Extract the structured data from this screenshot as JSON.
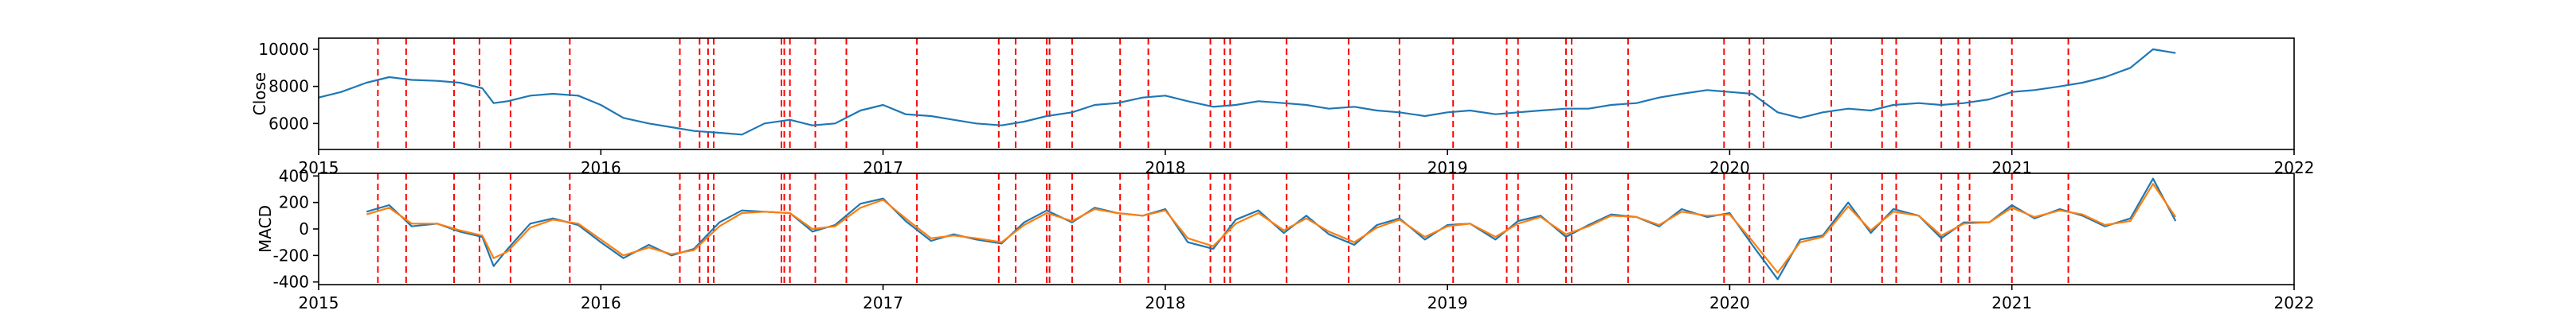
{
  "colors": {
    "close_line": "#1f77b4",
    "macd_line": "#1f77b4",
    "signal_line": "#ff7f0e",
    "event_lines": "#ff0000",
    "axes": "#000000",
    "background": "#ffffff"
  },
  "chart_data": [
    {
      "type": "line",
      "ylabel": "Close",
      "xlim": [
        2015.0,
        2022.0
      ],
      "ylim": [
        4600,
        10600
      ],
      "yticks": [
        6000,
        8000,
        10000
      ],
      "xticks": [
        2015,
        2016,
        2017,
        2018,
        2019,
        2020,
        2021,
        2022
      ],
      "grid": false,
      "series": [
        {
          "x": [
            2015.0,
            2015.08,
            2015.17,
            2015.25,
            2015.33,
            2015.42,
            2015.5,
            2015.58,
            2015.62,
            2015.67,
            2015.75,
            2015.83,
            2015.92,
            2016.0,
            2016.08,
            2016.17,
            2016.25,
            2016.33,
            2016.42,
            2016.5,
            2016.58,
            2016.67,
            2016.75,
            2016.83,
            2016.92,
            2017.0,
            2017.08,
            2017.17,
            2017.25,
            2017.33,
            2017.42,
            2017.5,
            2017.58,
            2017.67,
            2017.75,
            2017.83,
            2017.92,
            2018.0,
            2018.08,
            2018.17,
            2018.25,
            2018.33,
            2018.42,
            2018.5,
            2018.58,
            2018.67,
            2018.75,
            2018.83,
            2018.92,
            2019.0,
            2019.08,
            2019.17,
            2019.25,
            2019.33,
            2019.42,
            2019.5,
            2019.58,
            2019.67,
            2019.75,
            2019.83,
            2019.92,
            2020.0,
            2020.08,
            2020.17,
            2020.25,
            2020.33,
            2020.42,
            2020.5,
            2020.58,
            2020.67,
            2020.75,
            2020.83,
            2020.92,
            2021.0,
            2021.08,
            2021.17,
            2021.25,
            2021.33,
            2021.42,
            2021.5,
            2021.58
          ],
          "y": [
            7400,
            7700,
            8200,
            8500,
            8350,
            8300,
            8200,
            7900,
            7100,
            7200,
            7500,
            7600,
            7500,
            7000,
            6300,
            6000,
            5800,
            5600,
            5500,
            5400,
            6000,
            6200,
            5900,
            6000,
            6700,
            7000,
            6500,
            6400,
            6200,
            6000,
            5900,
            6100,
            6400,
            6600,
            7000,
            7100,
            7400,
            7500,
            7200,
            6900,
            7000,
            7200,
            7100,
            7000,
            6800,
            6900,
            6700,
            6600,
            6400,
            6600,
            6700,
            6500,
            6600,
            6700,
            6800,
            6800,
            7000,
            7100,
            7400,
            7600,
            7800,
            7700,
            7600,
            6600,
            6300,
            6600,
            6800,
            6700,
            7000,
            7100,
            7000,
            7100,
            7300,
            7700,
            7800,
            8000,
            8200,
            8500,
            9000,
            10000,
            9800
          ]
        }
      ]
    },
    {
      "type": "line",
      "ylabel": "MACD",
      "xlim": [
        2015.0,
        2022.0
      ],
      "ylim": [
        -420,
        420
      ],
      "yticks": [
        -400,
        -200,
        0,
        200,
        400
      ],
      "xticks": [
        2015,
        2016,
        2017,
        2018,
        2019,
        2020,
        2021,
        2022
      ],
      "grid": false,
      "series": [
        {
          "x": [
            2015.17,
            2015.25,
            2015.33,
            2015.42,
            2015.5,
            2015.58,
            2015.62,
            2015.67,
            2015.75,
            2015.83,
            2015.92,
            2016.0,
            2016.08,
            2016.17,
            2016.25,
            2016.33,
            2016.42,
            2016.5,
            2016.58,
            2016.67,
            2016.75,
            2016.83,
            2016.92,
            2017.0,
            2017.08,
            2017.17,
            2017.25,
            2017.33,
            2017.42,
            2017.5,
            2017.58,
            2017.67,
            2017.75,
            2017.83,
            2017.92,
            2018.0,
            2018.08,
            2018.17,
            2018.25,
            2018.33,
            2018.42,
            2018.5,
            2018.58,
            2018.67,
            2018.75,
            2018.83,
            2018.92,
            2019.0,
            2019.08,
            2019.17,
            2019.25,
            2019.33,
            2019.42,
            2019.5,
            2019.58,
            2019.67,
            2019.75,
            2019.83,
            2019.92,
            2020.0,
            2020.08,
            2020.17,
            2020.25,
            2020.33,
            2020.42,
            2020.5,
            2020.58,
            2020.67,
            2020.75,
            2020.83,
            2020.92,
            2021.0,
            2021.08,
            2021.17,
            2021.25,
            2021.33,
            2021.42,
            2021.5,
            2021.58
          ],
          "y": [
            130,
            180,
            20,
            40,
            -20,
            -60,
            -280,
            -150,
            40,
            80,
            30,
            -100,
            -220,
            -120,
            -200,
            -150,
            50,
            140,
            130,
            120,
            -20,
            30,
            190,
            230,
            60,
            -90,
            -40,
            -80,
            -110,
            50,
            140,
            50,
            160,
            120,
            100,
            150,
            -100,
            -150,
            70,
            140,
            -30,
            100,
            -40,
            -120,
            30,
            80,
            -80,
            30,
            40,
            -80,
            60,
            100,
            -60,
            30,
            110,
            90,
            20,
            150,
            90,
            120,
            -120,
            -380,
            -80,
            -50,
            200,
            -30,
            150,
            100,
            -70,
            50,
            50,
            180,
            80,
            150,
            100,
            20,
            80,
            380,
            60
          ]
        },
        {
          "x": [
            2015.17,
            2015.25,
            2015.33,
            2015.42,
            2015.5,
            2015.58,
            2015.62,
            2015.67,
            2015.75,
            2015.83,
            2015.92,
            2016.0,
            2016.08,
            2016.17,
            2016.25,
            2016.33,
            2016.42,
            2016.5,
            2016.58,
            2016.67,
            2016.75,
            2016.83,
            2016.92,
            2017.0,
            2017.08,
            2017.17,
            2017.25,
            2017.33,
            2017.42,
            2017.5,
            2017.58,
            2017.67,
            2017.75,
            2017.83,
            2017.92,
            2018.0,
            2018.08,
            2018.17,
            2018.25,
            2018.33,
            2018.42,
            2018.5,
            2018.58,
            2018.67,
            2018.75,
            2018.83,
            2018.92,
            2019.0,
            2019.08,
            2019.17,
            2019.25,
            2019.33,
            2019.42,
            2019.5,
            2019.58,
            2019.67,
            2019.75,
            2019.83,
            2019.92,
            2020.0,
            2020.08,
            2020.17,
            2020.25,
            2020.33,
            2020.42,
            2020.5,
            2020.58,
            2020.67,
            2020.75,
            2020.83,
            2020.92,
            2021.0,
            2021.08,
            2021.17,
            2021.25,
            2021.33,
            2021.42,
            2021.5,
            2021.58
          ],
          "y": [
            110,
            160,
            40,
            40,
            -10,
            -50,
            -220,
            -170,
            10,
            70,
            40,
            -80,
            -200,
            -140,
            -190,
            -160,
            20,
            120,
            130,
            120,
            0,
            20,
            160,
            220,
            80,
            -70,
            -50,
            -70,
            -100,
            30,
            120,
            60,
            150,
            120,
            100,
            140,
            -70,
            -130,
            40,
            120,
            -10,
            80,
            -20,
            -100,
            10,
            70,
            -60,
            20,
            40,
            -60,
            40,
            90,
            -40,
            20,
            100,
            90,
            30,
            130,
            100,
            110,
            -90,
            -330,
            -100,
            -60,
            170,
            -10,
            130,
            100,
            -50,
            40,
            50,
            160,
            90,
            140,
            110,
            30,
            60,
            340,
            90
          ]
        }
      ]
    }
  ],
  "event_lines_x": [
    2015.21,
    2015.31,
    2015.48,
    2015.57,
    2015.68,
    2015.89,
    2016.28,
    2016.35,
    2016.38,
    2016.4,
    2016.64,
    2016.65,
    2016.67,
    2016.76,
    2016.87,
    2017.12,
    2017.41,
    2017.47,
    2017.58,
    2017.59,
    2017.67,
    2017.84,
    2017.94,
    2018.16,
    2018.21,
    2018.23,
    2018.43,
    2018.65,
    2018.83,
    2019.02,
    2019.21,
    2019.25,
    2019.42,
    2019.44,
    2019.64,
    2019.98,
    2020.07,
    2020.12,
    2020.36,
    2020.54,
    2020.59,
    2020.75,
    2020.81,
    2020.85,
    2021.0,
    2021.2
  ]
}
